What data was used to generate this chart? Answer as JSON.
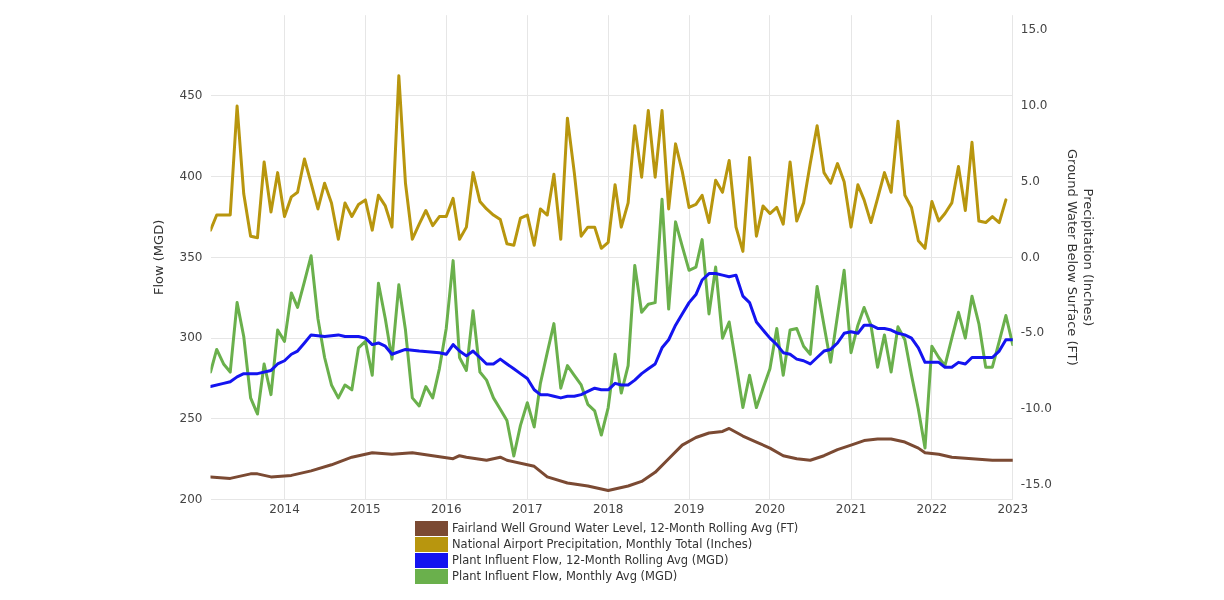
{
  "chart_data": {
    "type": "line",
    "ylabel": "Flow (MGD)",
    "y2label": "Precipitation (Inches)\nGround Water Below Surface (FT)",
    "x": [
      "2013-02",
      "2013-03",
      "2013-04",
      "2013-05",
      "2013-06",
      "2013-07",
      "2013-08",
      "2013-09",
      "2013-10",
      "2013-11",
      "2013-12",
      "2014-01",
      "2014-02",
      "2014-03",
      "2014-04",
      "2014-05",
      "2014-06",
      "2014-07",
      "2014-08",
      "2014-09",
      "2014-10",
      "2014-11",
      "2014-12",
      "2015-01",
      "2015-02",
      "2015-03",
      "2015-04",
      "2015-05",
      "2015-06",
      "2015-07",
      "2015-08",
      "2015-09",
      "2015-10",
      "2015-11",
      "2015-12",
      "2016-01",
      "2016-02",
      "2016-03",
      "2016-04",
      "2016-05",
      "2016-06",
      "2016-07",
      "2016-08",
      "2016-09",
      "2016-10",
      "2016-11",
      "2016-12",
      "2017-01",
      "2017-02",
      "2017-03",
      "2017-04",
      "2017-05",
      "2017-06",
      "2017-07",
      "2017-08",
      "2017-09",
      "2017-10",
      "2017-11",
      "2017-12",
      "2018-01",
      "2018-02",
      "2018-03",
      "2018-04",
      "2018-05",
      "2018-06",
      "2018-07",
      "2018-08",
      "2018-09",
      "2018-10",
      "2018-11",
      "2018-12",
      "2019-01",
      "2019-02",
      "2019-03",
      "2019-04",
      "2019-05",
      "2019-06",
      "2019-07",
      "2019-08",
      "2019-09",
      "2019-10",
      "2019-11",
      "2019-12",
      "2020-01",
      "2020-02",
      "2020-03",
      "2020-04",
      "2020-05",
      "2020-06",
      "2020-07",
      "2020-08",
      "2020-09",
      "2020-10",
      "2020-11",
      "2020-12",
      "2021-01",
      "2021-02",
      "2021-03",
      "2021-04",
      "2021-05",
      "2021-06",
      "2021-07",
      "2021-08",
      "2021-09",
      "2021-10",
      "2021-11",
      "2021-12",
      "2022-01",
      "2022-02",
      "2022-03",
      "2022-04",
      "2022-05",
      "2022-06",
      "2022-07",
      "2022-08",
      "2022-09",
      "2022-10",
      "2022-11",
      "2022-12",
      "2023-01"
    ],
    "series": [
      {
        "name": "Fairland Well Ground Water Level, 12-Month Rolling Avg (FT)",
        "color": "#7b4a33",
        "axis": "y2",
        "x": [
          "2013-02",
          "2013-05",
          "2013-08",
          "2013-09",
          "2013-11",
          "2014-02",
          "2014-05",
          "2014-08",
          "2014-11",
          "2015-02",
          "2015-05",
          "2015-08",
          "2015-11",
          "2016-02",
          "2016-03",
          "2016-04",
          "2016-07",
          "2016-09",
          "2016-10",
          "2017-02",
          "2017-04",
          "2017-07",
          "2017-10",
          "2018-01",
          "2018-04",
          "2018-06",
          "2018-08",
          "2018-10",
          "2018-12",
          "2019-02",
          "2019-04",
          "2019-06",
          "2019-07",
          "2019-09",
          "2019-11",
          "2020-01",
          "2020-03",
          "2020-05",
          "2020-07",
          "2020-09",
          "2020-11",
          "2021-01",
          "2021-03",
          "2021-05",
          "2021-07",
          "2021-09",
          "2021-11",
          "2021-12",
          "2022-02",
          "2022-04",
          "2022-07",
          "2022-10",
          "2023-01"
        ],
        "values": [
          -14.5,
          -14.6,
          -14.3,
          -14.3,
          -14.5,
          -14.4,
          -14.1,
          -13.7,
          -13.2,
          -12.9,
          -13.0,
          -12.9,
          -13.1,
          -13.3,
          -13.1,
          -13.2,
          -13.4,
          -13.2,
          -13.4,
          -13.8,
          -14.5,
          -14.9,
          -15.1,
          -15.4,
          -15.1,
          -14.8,
          -14.2,
          -13.3,
          -12.4,
          -11.9,
          -11.6,
          -11.5,
          -11.3,
          -11.8,
          -12.2,
          -12.6,
          -13.1,
          -13.3,
          -13.4,
          -13.1,
          -12.7,
          -12.4,
          -12.1,
          -12.0,
          -12.0,
          -12.2,
          -12.6,
          -12.9,
          -13.0,
          -13.2,
          -13.3,
          -13.4,
          -13.4
        ]
      },
      {
        "name": "National Airport Precipitation, Monthly Total (Inches)",
        "color": "#b8960e",
        "axis": "y2",
        "values": [
          1.8,
          2.8,
          2.8,
          2.8,
          10.0,
          4.2,
          1.4,
          1.3,
          6.3,
          3.0,
          5.6,
          2.7,
          4.0,
          4.3,
          6.5,
          4.9,
          3.2,
          4.9,
          3.6,
          1.2,
          3.6,
          2.7,
          3.5,
          3.8,
          1.8,
          4.1,
          3.4,
          2.0,
          12.0,
          4.9,
          1.2,
          2.2,
          3.1,
          2.1,
          2.7,
          2.7,
          3.9,
          1.2,
          2.0,
          5.6,
          3.7,
          3.2,
          2.8,
          2.5,
          0.9,
          0.8,
          2.6,
          2.8,
          0.8,
          3.2,
          2.8,
          5.5,
          1.2,
          9.2,
          5.6,
          1.4,
          2.0,
          2.0,
          0.6,
          1.0,
          4.8,
          2.0,
          3.6,
          8.7,
          5.3,
          9.7,
          5.3,
          9.7,
          3.2,
          7.5,
          5.7,
          3.3,
          3.5,
          4.1,
          2.3,
          5.1,
          4.3,
          6.4,
          2.0,
          0.4,
          6.6,
          1.4,
          3.4,
          2.9,
          3.3,
          2.2,
          6.3,
          2.4,
          3.6,
          6.2,
          8.7,
          5.6,
          4.9,
          6.2,
          5.0,
          2.0,
          4.8,
          3.8,
          2.3,
          3.9,
          5.6,
          4.3,
          9.0,
          4.1,
          3.3,
          1.1,
          0.6,
          3.7,
          2.4,
          2.9,
          3.6,
          6.0,
          3.1,
          7.6,
          2.4,
          2.3,
          2.7,
          2.3,
          3.8,
          null
        ]
      },
      {
        "name": "Plant Influent Flow, 12-Month Rolling Avg (MGD)",
        "color": "#1414f0",
        "x": [
          "2013-02",
          "2013-04",
          "2013-05",
          "2013-06",
          "2013-07",
          "2013-09",
          "2013-11",
          "2013-12",
          "2014-01",
          "2014-02",
          "2014-03",
          "2014-04",
          "2014-05",
          "2014-07",
          "2014-09",
          "2014-10",
          "2014-12",
          "2015-01",
          "2015-02",
          "2015-03",
          "2015-04",
          "2015-05",
          "2015-07",
          "2015-09",
          "2015-12",
          "2016-01",
          "2016-02",
          "2016-03",
          "2016-04",
          "2016-05",
          "2016-06",
          "2016-07",
          "2016-08",
          "2016-09",
          "2016-10",
          "2016-11",
          "2016-12",
          "2017-01",
          "2017-02",
          "2017-03",
          "2017-04",
          "2017-05",
          "2017-06",
          "2017-07",
          "2017-08",
          "2017-09",
          "2017-10",
          "2017-11",
          "2017-12",
          "2018-01",
          "2018-02",
          "2018-03",
          "2018-04",
          "2018-05",
          "2018-06",
          "2018-07",
          "2018-08",
          "2018-09",
          "2018-10",
          "2018-11",
          "2018-12",
          "2019-01",
          "2019-02",
          "2019-03",
          "2019-04",
          "2019-05",
          "2019-06",
          "2019-07",
          "2019-08",
          "2019-09",
          "2019-10",
          "2019-11",
          "2019-12",
          "2020-01",
          "2020-02",
          "2020-03",
          "2020-04",
          "2020-05",
          "2020-06",
          "2020-07",
          "2020-08",
          "2020-09",
          "2020-10",
          "2020-11",
          "2020-12",
          "2021-01",
          "2021-02",
          "2021-03",
          "2021-04",
          "2021-05",
          "2021-06",
          "2021-07",
          "2021-08",
          "2021-09",
          "2021-10",
          "2021-11",
          "2021-12",
          "2022-01",
          "2022-02",
          "2022-03",
          "2022-04",
          "2022-05",
          "2022-06",
          "2022-07",
          "2022-08",
          "2022-09",
          "2022-10",
          "2022-11",
          "2022-12",
          "2023-01"
        ],
        "values": [
          270,
          272,
          273,
          276,
          278,
          278,
          280,
          284,
          286,
          290,
          292,
          297,
          302,
          301,
          302,
          301,
          301,
          300,
          296,
          297,
          295,
          290,
          293,
          292,
          291,
          290,
          296,
          292,
          289,
          292,
          288,
          284,
          284,
          287,
          284,
          281,
          278,
          275,
          268,
          265,
          265,
          264,
          263,
          264,
          264,
          265,
          267,
          269,
          268,
          268,
          272,
          271,
          271,
          274,
          278,
          281,
          284,
          294,
          299,
          308,
          315,
          322,
          327,
          336,
          340,
          340,
          339,
          338,
          339,
          326,
          322,
          310,
          305,
          300,
          296,
          291,
          290,
          287,
          286,
          284,
          288,
          292,
          293,
          297,
          303,
          304,
          303,
          308,
          308,
          306,
          306,
          305,
          303,
          302,
          300,
          294,
          285,
          285,
          285,
          282,
          282,
          285,
          284,
          288,
          288,
          288,
          288,
          292,
          299,
          299
        ]
      },
      {
        "name": "Plant Influent Flow, Monthly Avg (MGD)",
        "color": "#6ab04c",
        "values": [
          279,
          293,
          284,
          279,
          322,
          301,
          263,
          253,
          284,
          265,
          305,
          298,
          328,
          319,
          335,
          351,
          312,
          288,
          271,
          263,
          271,
          268,
          294,
          298,
          277,
          334,
          312,
          287,
          333,
          305,
          263,
          258,
          270,
          263,
          281,
          306,
          348,
          288,
          280,
          317,
          279,
          274,
          263,
          256,
          249,
          227,
          246,
          260,
          245,
          272,
          291,
          309,
          269,
          283,
          277,
          271,
          259,
          255,
          240,
          257,
          290,
          266,
          283,
          345,
          316,
          321,
          322,
          386,
          318,
          372,
          357,
          342,
          344,
          361,
          315,
          344,
          300,
          310,
          284,
          257,
          277,
          257,
          269,
          281,
          306,
          277,
          305,
          306,
          295,
          290,
          332,
          308,
          285,
          314,
          342,
          291,
          308,
          319,
          308,
          282,
          302,
          279,
          307,
          299,
          277,
          256,
          232,
          295,
          288,
          283,
          300,
          316,
          300,
          326,
          309,
          282,
          282,
          298,
          314,
          296
        ]
      }
    ],
    "xlim": [
      "2013-02",
      "2023-01"
    ],
    "xticks": [
      "2014",
      "2015",
      "2016",
      "2017",
      "2018",
      "2019",
      "2020",
      "2021",
      "2022",
      "2023"
    ],
    "ylim": [
      200,
      500
    ],
    "yticks": [
      200,
      250,
      300,
      350,
      400,
      450
    ],
    "y2lim": [
      -16,
      16
    ],
    "y2ticks": [
      {
        "value": -15,
        "label": "-15.0"
      },
      {
        "value": -10,
        "label": "-10.0"
      },
      {
        "value": -5,
        "label": "-5.0"
      },
      {
        "value": 0,
        "label": "0.0"
      },
      {
        "value": 5,
        "label": "5.0"
      },
      {
        "value": 10,
        "label": "10.0"
      },
      {
        "value": 15,
        "label": "15.0"
      }
    ],
    "grid": true,
    "legend": "bottom",
    "marker": "none",
    "line_style": "solid"
  }
}
